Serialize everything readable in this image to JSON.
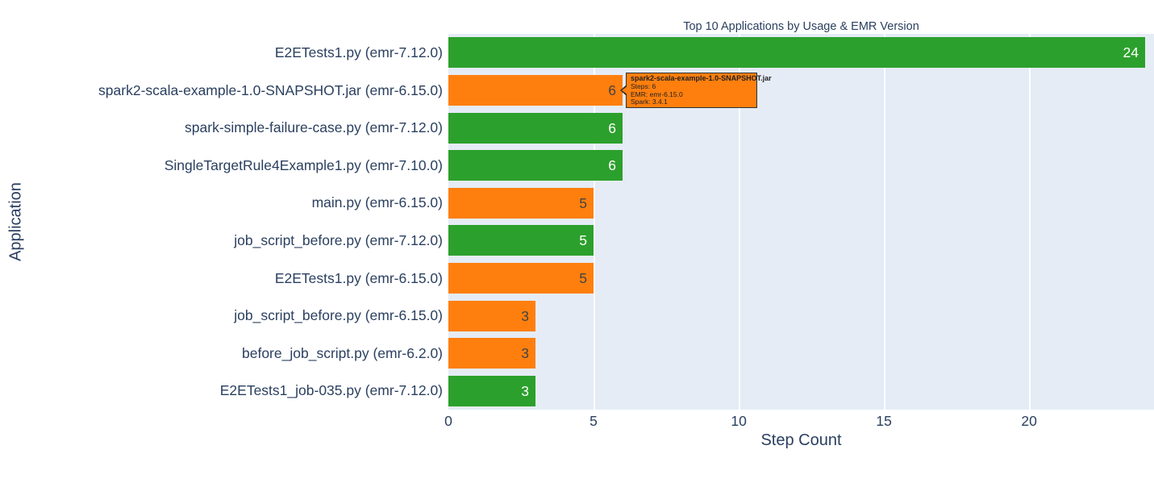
{
  "text_color": "#2a3f5f",
  "chart_data": {
    "type": "bar",
    "orientation": "horizontal",
    "title": "Top 10 Applications by Usage & EMR Version",
    "xlabel": "Step Count",
    "ylabel": "Application",
    "xlim": [
      0,
      24.3
    ],
    "x_ticks": [
      0,
      5,
      10,
      15,
      20
    ],
    "grid": true,
    "plot_bgcolor": "#e5ecf6",
    "grid_color": "#ffffff",
    "palette": {
      "green": "#2ca02c",
      "orange": "#ff7f0e"
    },
    "bars": [
      {
        "label": "E2ETests1.py (emr-7.12.0)",
        "value": 24,
        "color": "#2ca02c",
        "value_label": "24",
        "value_label_color": "#ffffff"
      },
      {
        "label": "spark2-scala-example-1.0-SNAPSHOT.jar (emr-6.15.0)",
        "value": 6,
        "color": "#ff7f0e",
        "value_label": "6",
        "value_label_color": "#444444"
      },
      {
        "label": "spark-simple-failure-case.py (emr-7.12.0)",
        "value": 6,
        "color": "#2ca02c",
        "value_label": "6",
        "value_label_color": "#ffffff"
      },
      {
        "label": "SingleTargetRule4Example1.py (emr-7.10.0)",
        "value": 6,
        "color": "#2ca02c",
        "value_label": "6",
        "value_label_color": "#ffffff"
      },
      {
        "label": "main.py (emr-6.15.0)",
        "value": 5,
        "color": "#ff7f0e",
        "value_label": "5",
        "value_label_color": "#444444"
      },
      {
        "label": "job_script_before.py (emr-7.12.0)",
        "value": 5,
        "color": "#2ca02c",
        "value_label": "5",
        "value_label_color": "#ffffff"
      },
      {
        "label": "E2ETests1.py (emr-6.15.0)",
        "value": 5,
        "color": "#ff7f0e",
        "value_label": "5",
        "value_label_color": "#444444"
      },
      {
        "label": "job_script_before.py (emr-6.15.0)",
        "value": 3,
        "color": "#ff7f0e",
        "value_label": "3",
        "value_label_color": "#444444"
      },
      {
        "label": "before_job_script.py (emr-6.2.0)",
        "value": 3,
        "color": "#ff7f0e",
        "value_label": "3",
        "value_label_color": "#444444"
      },
      {
        "label": "E2ETests1_job-035.py (emr-7.12.0)",
        "value": 3,
        "color": "#2ca02c",
        "value_label": "3",
        "value_label_color": "#ffffff"
      }
    ]
  },
  "tooltip": {
    "title": "spark2-scala-example-1.0-SNAPSHOT.jar",
    "lines": [
      "Steps: 6",
      "EMR: emr-6.15.0",
      "Spark: 3.4.1"
    ],
    "bg_color": "#ff7f0e",
    "border_color": "#333333",
    "text_color": "#222222"
  }
}
